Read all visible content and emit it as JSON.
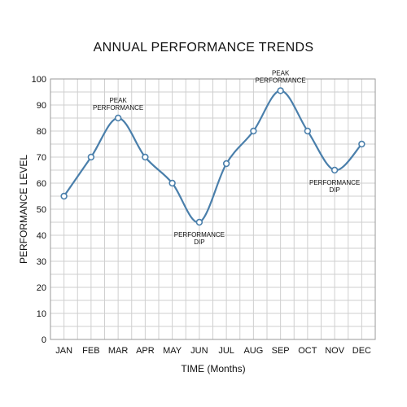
{
  "chart_data": {
    "type": "line",
    "title": "ANNUAL PERFORMANCE TRENDS",
    "xlabel": "TIME (Months)",
    "ylabel": "PERFORMANCE LEVEL",
    "categories": [
      "JAN",
      "FEB",
      "MAR",
      "APR",
      "MAY",
      "JUN",
      "JUL",
      "AUG",
      "SEP",
      "OCT",
      "NOV",
      "DEC"
    ],
    "values": [
      55,
      70,
      85,
      70,
      60,
      45,
      67.5,
      80,
      95.5,
      80,
      65,
      75
    ],
    "ylim": [
      0,
      100
    ],
    "ytick_step": 10,
    "yticks": [
      "0",
      "10",
      "20",
      "30",
      "40",
      "50",
      "60",
      "70",
      "80",
      "90",
      "100"
    ],
    "grid": true,
    "legend": "none",
    "color": "#4a7fab",
    "annotations": [
      {
        "index": 2,
        "lines": [
          "PEAK",
          "PERFORMANCE"
        ],
        "position": "above"
      },
      {
        "index": 5,
        "lines": [
          "PERFORMANCE",
          "DIP"
        ],
        "position": "below"
      },
      {
        "index": 8,
        "lines": [
          "PEAK",
          "PERFORMANCE"
        ],
        "position": "above"
      },
      {
        "index": 10,
        "lines": [
          "PERFORMANCE",
          "DIP"
        ],
        "position": "below"
      }
    ]
  }
}
